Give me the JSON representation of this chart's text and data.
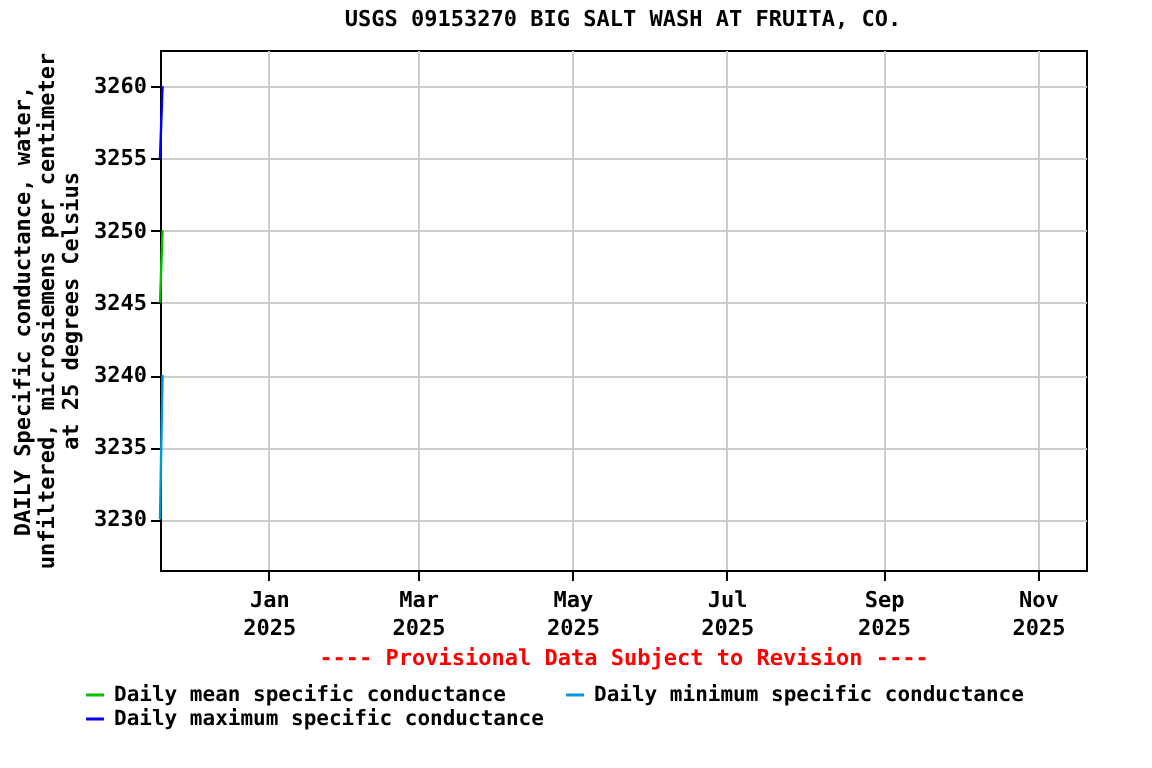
{
  "chart_data": {
    "type": "line",
    "title": "USGS 09153270 BIG SALT WASH AT FRUITA, CO.",
    "ylabel": "DAILY Specific conductance, water, unfiltered, microsiemens per centimeter at 25 degrees Celsius",
    "x": [
      "2024-11-19",
      "2024-11-20"
    ],
    "series": [
      {
        "name": "Daily mean specific conductance",
        "color": "#00c000",
        "values": [
          3245,
          3250
        ]
      },
      {
        "name": "Daily minimum specific conductance",
        "color": "#0096dc",
        "values": [
          3230,
          3240
        ]
      },
      {
        "name": "Daily maximum specific conductance",
        "color": "#0000ff",
        "values": [
          3255,
          3260
        ]
      }
    ],
    "xlim": [
      "2024-11-19",
      "2025-11-20"
    ],
    "xticks": [
      {
        "value": "2025-01-01",
        "label": "Jan 2025"
      },
      {
        "value": "2025-03-01",
        "label": "Mar 2025"
      },
      {
        "value": "2025-05-01",
        "label": "May 2025"
      },
      {
        "value": "2025-07-01",
        "label": "Jul 2025"
      },
      {
        "value": "2025-09-01",
        "label": "Sep 2025"
      },
      {
        "value": "2025-11-01",
        "label": "Nov 2025"
      }
    ],
    "ylim": [
      3226.5,
      3262.5
    ],
    "yticks": [
      3230,
      3235,
      3240,
      3245,
      3250,
      3255,
      3260
    ],
    "grid": true,
    "legend": "bottom",
    "annotations": [
      "---- Provisional Data Subject to Revision ----"
    ]
  }
}
